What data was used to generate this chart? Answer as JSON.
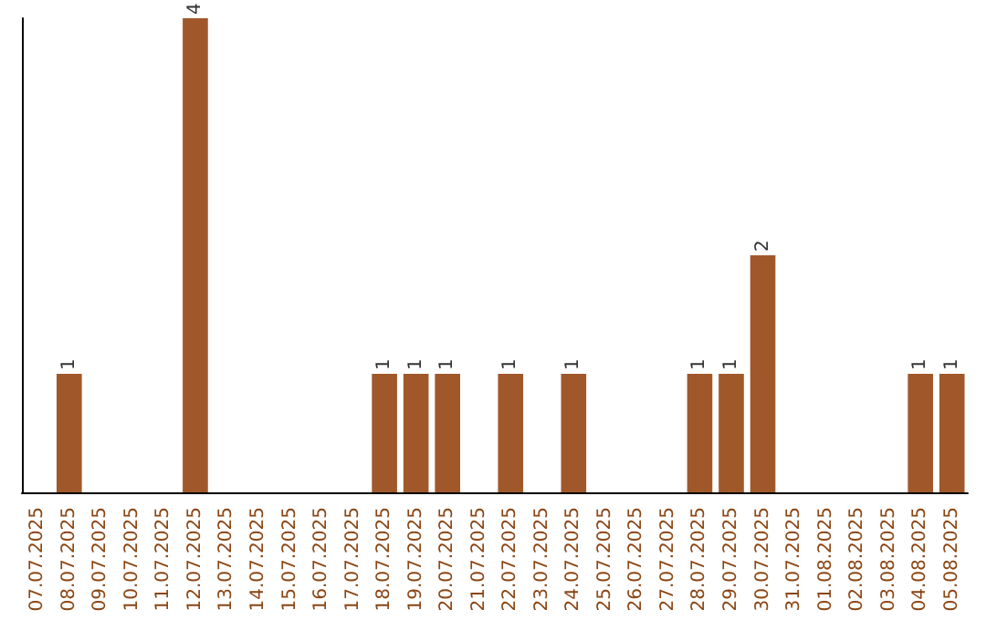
{
  "chart_data": {
    "type": "bar",
    "categories": [
      "07.07.2025",
      "08.07.2025",
      "09.07.2025",
      "10.07.2025",
      "11.07.2025",
      "12.07.2025",
      "13.07.2025",
      "14.07.2025",
      "15.07.2025",
      "16.07.2025",
      "17.07.2025",
      "18.07.2025",
      "19.07.2025",
      "20.07.2025",
      "21.07.2025",
      "22.07.2025",
      "23.07.2025",
      "24.07.2025",
      "25.07.2025",
      "26.07.2025",
      "27.07.2025",
      "28.07.2025",
      "29.07.2025",
      "30.07.2025",
      "31.07.2025",
      "01.08.2025",
      "02.08.2025",
      "03.08.2025",
      "04.08.2025",
      "05.08.2025"
    ],
    "values": [
      0,
      1,
      0,
      0,
      0,
      4,
      0,
      0,
      0,
      0,
      0,
      1,
      1,
      1,
      0,
      1,
      0,
      1,
      0,
      0,
      0,
      1,
      1,
      2,
      0,
      0,
      0,
      0,
      1,
      1
    ],
    "value_labels": [
      null,
      "1",
      null,
      null,
      null,
      "4",
      null,
      null,
      null,
      null,
      null,
      "1",
      "1",
      "1",
      null,
      "1",
      null,
      "1",
      null,
      null,
      null,
      "1",
      "1",
      "2",
      null,
      null,
      null,
      null,
      "1",
      "1"
    ],
    "color": "#a0582a",
    "tick_labels": "x",
    "grid": false
  }
}
